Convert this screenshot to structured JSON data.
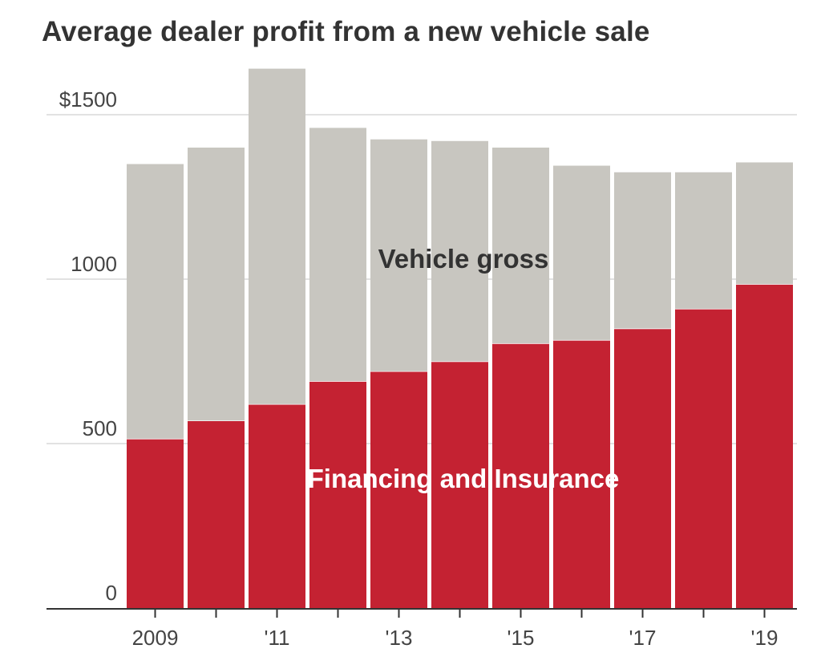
{
  "title": "Average dealer profit from a new vehicle sale",
  "colors": {
    "financing": "#c42232",
    "vehicle_gross": "#c8c6c0",
    "grid": "#e2e2e2",
    "axis": "#333333",
    "label_dark": "#333333",
    "label_light": "#ffffff"
  },
  "chart_data": {
    "type": "bar",
    "stacked": true,
    "categories": [
      "2009",
      "2010",
      "2011",
      "2012",
      "2013",
      "2014",
      "2015",
      "2016",
      "2017",
      "2018",
      "2019"
    ],
    "x_tick_labels": [
      "2009",
      "",
      "'11",
      "",
      "'13",
      "",
      "'15",
      "",
      "'17",
      "",
      "'19"
    ],
    "y_tick_labels": [
      "0",
      "500",
      "1000",
      "$1500"
    ],
    "y_ticks": [
      0,
      500,
      1000,
      1500
    ],
    "ylim": [
      0,
      1500
    ],
    "grid": true,
    "legend": "inline labels",
    "series": [
      {
        "name": "Financing and Insurance",
        "color": "#c42232",
        "values": [
          515,
          570,
          620,
          690,
          720,
          750,
          805,
          815,
          850,
          910,
          985
        ]
      },
      {
        "name": "Vehicle gross",
        "color": "#c8c6c0",
        "values": [
          835,
          830,
          1020,
          770,
          705,
          670,
          595,
          530,
          475,
          415,
          370
        ]
      }
    ]
  }
}
